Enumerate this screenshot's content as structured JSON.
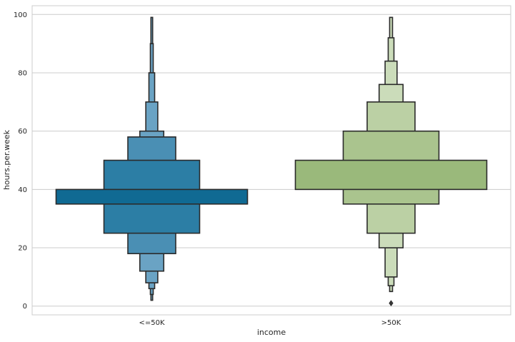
{
  "chart_data": {
    "type": "boxen",
    "title": "",
    "xlabel": "income",
    "ylabel": "hours.per.week",
    "ylim": [
      -3,
      103
    ],
    "yticks": [
      0,
      20,
      40,
      60,
      80,
      100
    ],
    "grid": "horizontal",
    "categories": [
      "<=50K",
      ">50K"
    ],
    "series": [
      {
        "category": "<=50K",
        "colors": [
          "#106a93",
          "#2c7ea5",
          "#4a8fb4",
          "#6aa3c4"
        ],
        "levels": [
          {
            "low": 35,
            "high": 40,
            "width": 1.0
          },
          {
            "low": 25,
            "high": 50,
            "width": 0.5
          },
          {
            "low": 18,
            "high": 58,
            "width": 0.25
          },
          {
            "low": 12,
            "high": 60,
            "width": 0.125
          },
          {
            "low": 8,
            "high": 70,
            "width": 0.0625
          },
          {
            "low": 6,
            "high": 80,
            "width": 0.03
          },
          {
            "low": 4,
            "high": 90,
            "width": 0.015
          },
          {
            "low": 2,
            "high": 99,
            "width": 0.008
          }
        ],
        "outliers": []
      },
      {
        "category": ">50K",
        "colors": [
          "#9ab97b",
          "#aac48e",
          "#bbd0a4",
          "#cbdcba"
        ],
        "levels": [
          {
            "low": 40,
            "high": 50,
            "width": 1.0
          },
          {
            "low": 35,
            "high": 60,
            "width": 0.5
          },
          {
            "low": 25,
            "high": 70,
            "width": 0.25
          },
          {
            "low": 20,
            "high": 76,
            "width": 0.125
          },
          {
            "low": 10,
            "high": 84,
            "width": 0.0625
          },
          {
            "low": 7,
            "high": 92,
            "width": 0.03
          },
          {
            "low": 5,
            "high": 99,
            "width": 0.015
          }
        ],
        "outliers": [
          1
        ]
      }
    ]
  }
}
